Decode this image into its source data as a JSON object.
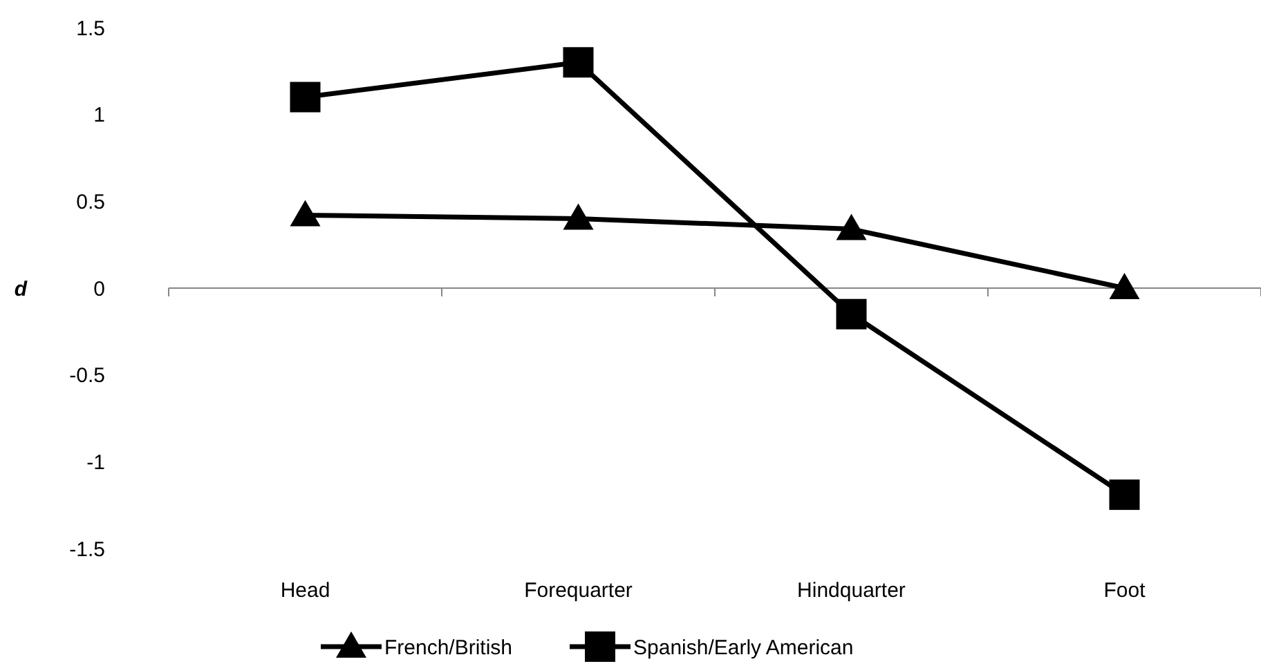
{
  "chart_data": {
    "type": "line",
    "ylabel": "d",
    "categories": [
      "Head",
      "Forequarter",
      "Hindquarter",
      "Foot"
    ],
    "series": [
      {
        "name": "French/British",
        "color": "#000000",
        "marker": "triangle",
        "values": [
          0.42,
          0.4,
          0.34,
          0
        ]
      },
      {
        "name": "Spanish/Early American",
        "color": "#000000",
        "marker": "square",
        "values": [
          1.1,
          1.3,
          -0.15,
          -1.19
        ]
      }
    ],
    "ylim": [
      -1.5,
      1.5
    ],
    "yticks": [
      -1.5,
      -1,
      -0.5,
      0,
      0.5,
      1,
      1.5
    ],
    "legend": "bottom"
  }
}
